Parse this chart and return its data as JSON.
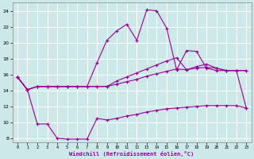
{
  "xlabel": "Windchill (Refroidissement éolien,°C)",
  "hours": [
    0,
    1,
    2,
    3,
    4,
    5,
    6,
    7,
    8,
    9,
    10,
    11,
    12,
    13,
    14,
    15,
    16,
    17,
    18,
    19,
    20,
    21,
    22,
    23
  ],
  "line_top": [
    15.7,
    14.1,
    14.5,
    14.5,
    14.5,
    14.5,
    14.5,
    14.5,
    17.5,
    20.3,
    21.5,
    22.3,
    20.3,
    24.1,
    24.0,
    21.8,
    16.6,
    19.0,
    18.9,
    16.8,
    16.5,
    16.5,
    16.5,
    11.8
  ],
  "line_mid1": [
    15.7,
    14.1,
    14.5,
    14.5,
    14.5,
    14.5,
    14.5,
    14.5,
    14.5,
    14.5,
    15.2,
    15.7,
    16.2,
    16.7,
    17.2,
    17.7,
    18.1,
    16.6,
    17.0,
    17.3,
    16.8,
    16.5,
    16.5,
    16.5
  ],
  "line_mid2": [
    15.7,
    14.1,
    14.5,
    14.5,
    14.5,
    14.5,
    14.5,
    14.5,
    14.5,
    14.5,
    14.8,
    15.1,
    15.4,
    15.8,
    16.1,
    16.4,
    16.7,
    16.6,
    16.8,
    16.9,
    16.8,
    16.5,
    16.5,
    16.5
  ],
  "line_bot": [
    15.7,
    14.1,
    9.8,
    9.8,
    8.0,
    7.9,
    7.9,
    7.9,
    10.5,
    10.3,
    10.5,
    10.8,
    11.0,
    11.3,
    11.5,
    11.7,
    11.8,
    11.9,
    12.0,
    12.1,
    12.1,
    12.1,
    12.1,
    11.8
  ],
  "line_color": "#990099",
  "bg_color": "#cce8e8",
  "grid_color": "#ffffff",
  "ylim": [
    7.5,
    25
  ],
  "yticks": [
    8,
    10,
    12,
    14,
    16,
    18,
    20,
    22,
    24
  ],
  "xlim": [
    -0.5,
    23.5
  ]
}
